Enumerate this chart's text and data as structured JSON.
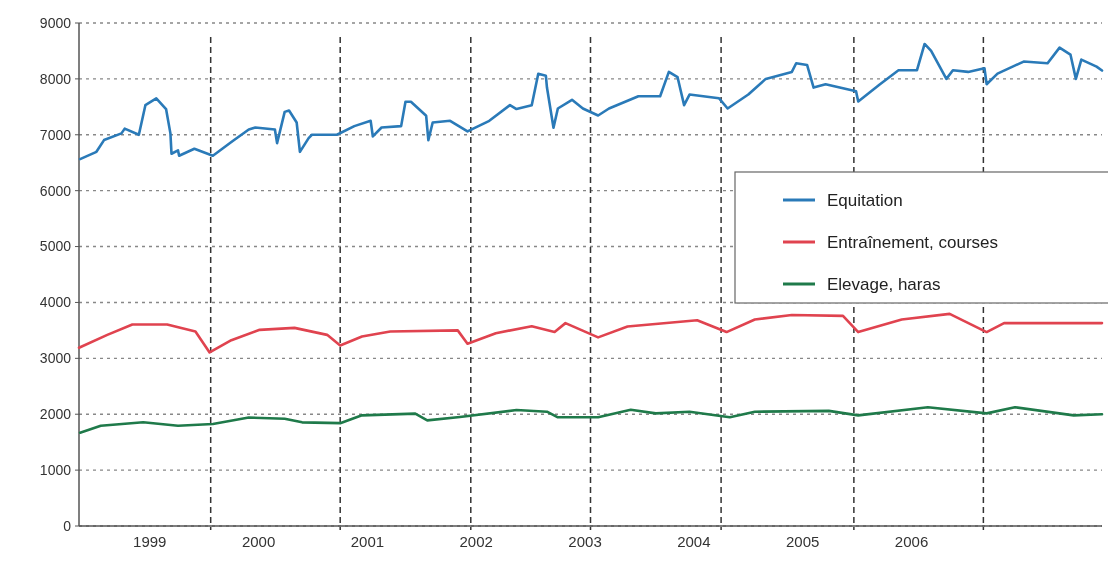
{
  "chart_data": {
    "type": "line",
    "xlim": [
      1998.35,
      2007.75
    ],
    "xticks": [
      1999,
      2000,
      2001,
      2002,
      2003,
      2004,
      2005,
      2006
    ],
    "ylim": [
      0,
      9000
    ],
    "yticks": [
      0,
      1000,
      2000,
      3000,
      4000,
      5000,
      6000,
      7000,
      8000,
      9000
    ],
    "grid": "y",
    "legend": "right",
    "line_style": "solid",
    "marker": "none",
    "ref_lines": [
      {
        "axis": "x",
        "value": 1999.56,
        "line_style": "dashed",
        "color": "#333333"
      },
      {
        "axis": "x",
        "value": 2000.75,
        "line_style": "dashed",
        "color": "#333333"
      },
      {
        "axis": "x",
        "value": 2001.95,
        "line_style": "dashed",
        "color": "#333333"
      },
      {
        "axis": "x",
        "value": 2003.05,
        "line_style": "dashed",
        "color": "#333333"
      },
      {
        "axis": "x",
        "value": 2004.25,
        "line_style": "dashed",
        "color": "#333333"
      },
      {
        "axis": "x",
        "value": 2005.47,
        "line_style": "dashed",
        "color": "#333333"
      },
      {
        "axis": "x",
        "value": 2006.66,
        "line_style": "dashed",
        "color": "#333333"
      }
    ],
    "series": [
      {
        "name": "Equitation",
        "color": "#2a7ab8",
        "x": [
          1998.36,
          1998.51,
          1998.58,
          1998.74,
          1998.77,
          1998.9,
          1998.96,
          1999.06,
          1999.15,
          1999.19,
          1999.2,
          1999.26,
          1999.27,
          1999.41,
          1999.58,
          1999.75,
          1999.91,
          1999.97,
          2000.15,
          2000.17,
          2000.24,
          2000.28,
          2000.35,
          2000.38,
          2000.46,
          2000.49,
          2000.72,
          2000.88,
          2001.03,
          2001.05,
          2001.13,
          2001.31,
          2001.35,
          2001.4,
          2001.54,
          2001.56,
          2001.6,
          2001.76,
          2001.92,
          2002.12,
          2002.31,
          2002.37,
          2002.51,
          2002.57,
          2002.64,
          2002.65,
          2002.71,
          2002.75,
          2002.88,
          2002.98,
          2003.12,
          2003.22,
          2003.49,
          2003.69,
          2003.77,
          2003.85,
          2003.91,
          2003.96,
          2004.23,
          2004.31,
          2004.5,
          2004.66,
          2004.9,
          2004.94,
          2005.04,
          2005.1,
          2005.21,
          2005.49,
          2005.51,
          2005.71,
          2005.88,
          2006.05,
          2006.12,
          2006.18,
          2006.32,
          2006.38,
          2006.52,
          2006.67,
          2006.69,
          2006.79,
          2007.03,
          2007.25,
          2007.36,
          2007.46,
          2007.51,
          2007.56,
          2007.7,
          2007.75
        ],
        "values": [
          6565,
          6695,
          6905,
          7025,
          7110,
          7000,
          7530,
          7650,
          7460,
          7025,
          6660,
          6720,
          6625,
          6750,
          6625,
          6870,
          7095,
          7130,
          7095,
          6850,
          7410,
          7435,
          7220,
          6695,
          6940,
          7000,
          7000,
          7155,
          7250,
          6970,
          7130,
          7155,
          7590,
          7590,
          7340,
          6905,
          7220,
          7250,
          7060,
          7250,
          7530,
          7460,
          7530,
          8090,
          8055,
          7845,
          7125,
          7470,
          7625,
          7470,
          7345,
          7470,
          7690,
          7690,
          8125,
          8030,
          7530,
          7720,
          7655,
          7470,
          7720,
          8000,
          8125,
          8280,
          8250,
          7845,
          7905,
          7780,
          7595,
          7905,
          8155,
          8155,
          8625,
          8500,
          8000,
          8155,
          8125,
          8190,
          7905,
          8095,
          8310,
          8280,
          8560,
          8435,
          8000,
          8345,
          8220,
          8150
        ]
      },
      {
        "name": "Entraînement, courses",
        "color": "#e0434f",
        "x": [
          1998.35,
          1998.61,
          1998.84,
          1999.16,
          1999.42,
          1999.55,
          1999.75,
          2000.01,
          2000.33,
          2000.63,
          2000.75,
          2000.95,
          2001.21,
          2001.83,
          2001.92,
          2002.18,
          2002.51,
          2002.72,
          2002.82,
          2003.12,
          2003.39,
          2004.03,
          2004.3,
          2004.56,
          2004.9,
          2005.37,
          2005.51,
          2005.91,
          2006.35,
          2006.69,
          2006.85,
          2007.75
        ],
        "values": [
          3190,
          3420,
          3605,
          3605,
          3480,
          3105,
          3325,
          3510,
          3545,
          3420,
          3230,
          3390,
          3480,
          3500,
          3260,
          3450,
          3575,
          3470,
          3630,
          3375,
          3570,
          3680,
          3470,
          3695,
          3775,
          3760,
          3470,
          3695,
          3795,
          3470,
          3630,
          3630
        ]
      },
      {
        "name": "Elevage, haras",
        "color": "#1f7a4a",
        "x": [
          1998.36,
          1998.55,
          1998.94,
          1999.26,
          1999.58,
          1999.91,
          2000.24,
          2000.4,
          2000.75,
          2000.95,
          2001.44,
          2001.55,
          2001.85,
          2002.37,
          2002.65,
          2002.75,
          2003.12,
          2003.42,
          2003.65,
          2003.96,
          2004.33,
          2004.56,
          2005.24,
          2005.51,
          2006.15,
          2006.69,
          2006.95,
          2007.49,
          2007.75
        ],
        "values": [
          1670,
          1795,
          1855,
          1795,
          1825,
          1940,
          1920,
          1855,
          1840,
          1980,
          2010,
          1890,
          1950,
          2075,
          2045,
          1945,
          1945,
          2080,
          2015,
          2045,
          1945,
          2045,
          2060,
          1980,
          2125,
          2015,
          2125,
          1980,
          2000
        ]
      }
    ]
  }
}
